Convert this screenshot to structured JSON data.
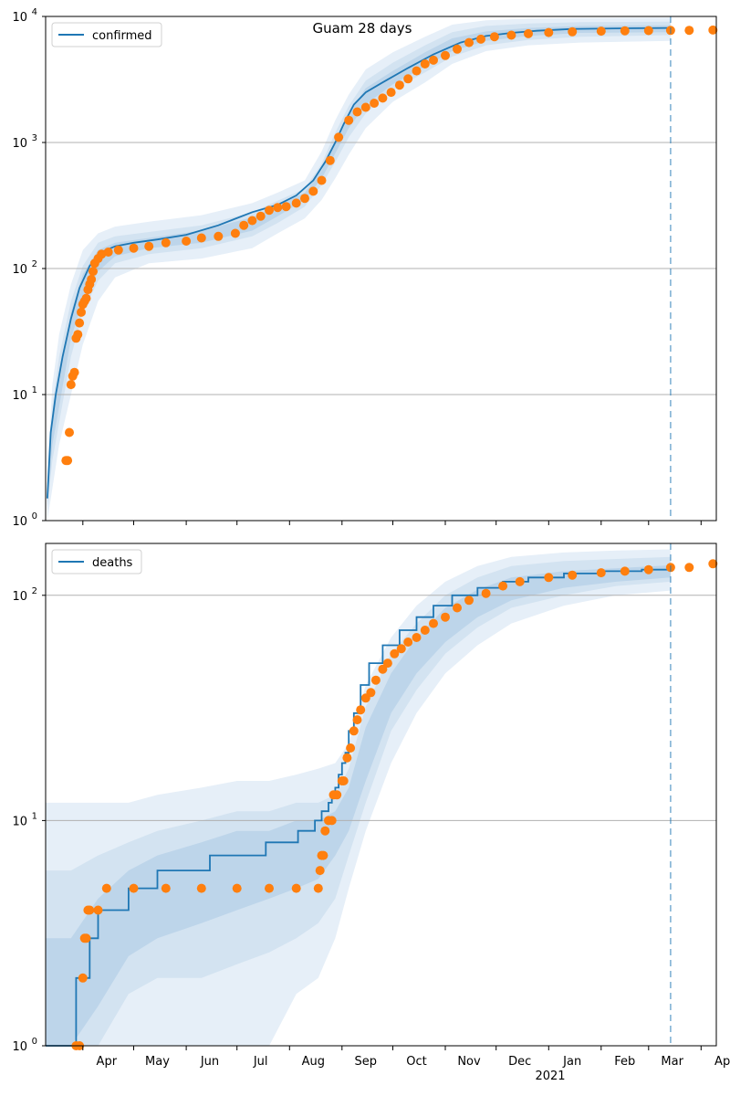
{
  "chart_data": [
    {
      "type": "line",
      "title": "Guam 28 days",
      "scale": "log",
      "ylim": [
        1,
        10000
      ],
      "y_ticks": [
        1,
        10,
        100,
        1000,
        10000
      ],
      "y_tick_labels": [
        "10^0",
        "10^1",
        "10^2",
        "10^3",
        "10^4"
      ],
      "grid": "horizontal",
      "legend": {
        "label": "confirmed",
        "placement": "top-left"
      },
      "xlim": [
        "2020-03-10",
        "2021-04-10"
      ],
      "forecast_start": "2021-03-14",
      "series": [
        {
          "name": "confirmed",
          "style": "line",
          "color": "#1f77b4",
          "x": [
            "2020-03-11",
            "2020-03-13",
            "2020-03-16",
            "2020-03-20",
            "2020-03-25",
            "2020-03-30",
            "2020-04-05",
            "2020-04-12",
            "2020-04-20",
            "2020-05-01",
            "2020-05-15",
            "2020-06-01",
            "2020-06-20",
            "2020-07-10",
            "2020-07-25",
            "2020-08-05",
            "2020-08-15",
            "2020-08-22",
            "2020-08-28",
            "2020-09-02",
            "2020-09-08",
            "2020-09-15",
            "2020-09-25",
            "2020-10-10",
            "2020-10-25",
            "2020-11-10",
            "2020-11-25",
            "2020-12-10",
            "2020-12-25",
            "2021-01-15",
            "2021-02-15",
            "2021-03-14"
          ],
          "y": [
            1.5,
            5,
            10,
            20,
            40,
            70,
            105,
            135,
            150,
            160,
            170,
            185,
            220,
            280,
            320,
            380,
            500,
            700,
            1000,
            1400,
            2000,
            2500,
            3000,
            3900,
            5000,
            6200,
            7000,
            7400,
            7700,
            7950,
            8050,
            8100
          ]
        },
        {
          "name": "",
          "style": "markers",
          "color": "#ff7f0e",
          "x": [
            "2020-03-22",
            "2020-03-23",
            "2020-03-24",
            "2020-03-25",
            "2020-03-26",
            "2020-03-27",
            "2020-03-28",
            "2020-03-29",
            "2020-03-30",
            "2020-03-31",
            "2020-04-01",
            "2020-04-02",
            "2020-04-03",
            "2020-04-04",
            "2020-04-05",
            "2020-04-06",
            "2020-04-07",
            "2020-04-08",
            "2020-04-10",
            "2020-04-12",
            "2020-04-16",
            "2020-04-22",
            "2020-05-01",
            "2020-05-10",
            "2020-05-20",
            "2020-06-01",
            "2020-06-10",
            "2020-06-20",
            "2020-06-30",
            "2020-07-05",
            "2020-07-10",
            "2020-07-15",
            "2020-07-20",
            "2020-07-25",
            "2020-07-30",
            "2020-08-05",
            "2020-08-10",
            "2020-08-15",
            "2020-08-20",
            "2020-08-25",
            "2020-08-30",
            "2020-09-05",
            "2020-09-10",
            "2020-09-15",
            "2020-09-20",
            "2020-09-25",
            "2020-09-30",
            "2020-10-05",
            "2020-10-10",
            "2020-10-15",
            "2020-10-20",
            "2020-10-25",
            "2020-11-01",
            "2020-11-08",
            "2020-11-15",
            "2020-11-22",
            "2020-11-30",
            "2020-12-10",
            "2020-12-20",
            "2021-01-01",
            "2021-01-15",
            "2021-02-01",
            "2021-02-15",
            "2021-03-01",
            "2021-03-14",
            "2021-03-25",
            "2021-04-08"
          ],
          "y": [
            3,
            3,
            5,
            12,
            14,
            15,
            28,
            30,
            37,
            45,
            52,
            55,
            58,
            68,
            75,
            82,
            95,
            110,
            120,
            130,
            135,
            140,
            145,
            150,
            160,
            165,
            175,
            180,
            190,
            220,
            240,
            260,
            290,
            305,
            310,
            330,
            360,
            410,
            500,
            720,
            1100,
            1500,
            1750,
            1900,
            2050,
            2250,
            2500,
            2850,
            3200,
            3700,
            4200,
            4500,
            4900,
            5500,
            6200,
            6600,
            6900,
            7100,
            7300,
            7450,
            7550,
            7650,
            7700,
            7720,
            7750,
            7760,
            7800
          ]
        }
      ],
      "bands": [
        {
          "level": "outer",
          "x": [
            "2020-03-11",
            "2020-03-14",
            "2020-03-18",
            "2020-03-25",
            "2020-04-01",
            "2020-04-10",
            "2020-04-20",
            "2020-05-10",
            "2020-06-10",
            "2020-07-10",
            "2020-07-25",
            "2020-08-10",
            "2020-08-20",
            "2020-08-28",
            "2020-09-05",
            "2020-09-15",
            "2020-10-01",
            "2020-10-20",
            "2020-11-05",
            "2020-11-25",
            "2020-12-20",
            "2021-01-20",
            "2021-03-14"
          ],
          "lower": [
            1,
            1.8,
            4,
            10,
            25,
            55,
            85,
            110,
            120,
            145,
            190,
            250,
            350,
            520,
            800,
            1300,
            2100,
            3000,
            4200,
            5300,
            5900,
            6200,
            6400
          ],
          "upper": [
            2.5,
            12,
            30,
            75,
            140,
            190,
            215,
            235,
            265,
            330,
            400,
            500,
            850,
            1500,
            2400,
            3800,
            5200,
            6900,
            8600,
            9300,
            9600,
            9700,
            9800
          ]
        },
        {
          "level": "mid",
          "x": [
            "2020-03-11",
            "2020-03-14",
            "2020-03-18",
            "2020-03-25",
            "2020-04-01",
            "2020-04-10",
            "2020-04-20",
            "2020-05-10",
            "2020-06-10",
            "2020-07-10",
            "2020-07-25",
            "2020-08-10",
            "2020-08-20",
            "2020-08-28",
            "2020-09-05",
            "2020-09-15",
            "2020-10-01",
            "2020-10-20",
            "2020-11-05",
            "2020-11-25",
            "2020-12-20",
            "2021-01-20",
            "2021-03-14"
          ],
          "lower": [
            1.2,
            3,
            6,
            20,
            45,
            80,
            110,
            130,
            145,
            180,
            230,
            310,
            460,
            700,
            1100,
            1700,
            2600,
            3600,
            4800,
            5900,
            6500,
            6900,
            7100
          ],
          "upper": [
            2,
            8,
            20,
            55,
            105,
            160,
            180,
            195,
            220,
            280,
            345,
            430,
            680,
            1200,
            1950,
            3100,
            4300,
            5900,
            7500,
            8400,
            8800,
            9000,
            9100
          ]
        },
        {
          "level": "inner",
          "x": [
            "2020-03-11",
            "2020-03-14",
            "2020-03-18",
            "2020-03-25",
            "2020-04-01",
            "2020-04-10",
            "2020-04-20",
            "2020-05-10",
            "2020-06-10",
            "2020-07-10",
            "2020-07-25",
            "2020-08-10",
            "2020-08-20",
            "2020-08-28",
            "2020-09-05",
            "2020-09-15",
            "2020-10-01",
            "2020-10-20",
            "2020-11-05",
            "2020-11-25",
            "2020-12-20",
            "2021-01-20",
            "2021-03-14"
          ],
          "lower": [
            1.3,
            4,
            8,
            28,
            55,
            95,
            125,
            145,
            160,
            200,
            260,
            350,
            520,
            820,
            1300,
            2000,
            2900,
            4000,
            5300,
            6400,
            7000,
            7400,
            7500
          ],
          "upper": [
            1.8,
            6,
            14,
            45,
            90,
            140,
            160,
            175,
            200,
            255,
            315,
            400,
            600,
            1050,
            1700,
            2700,
            3700,
            5200,
            6700,
            7600,
            8100,
            8400,
            8500
          ]
        }
      ]
    },
    {
      "type": "line",
      "title": "",
      "scale": "log",
      "ylim": [
        1,
        170
      ],
      "y_ticks": [
        1,
        10,
        100
      ],
      "y_tick_labels": [
        "10^0",
        "10^1",
        "10^2"
      ],
      "grid": "horizontal",
      "legend": {
        "label": "deaths",
        "placement": "top-left"
      },
      "xlim": [
        "2020-03-10",
        "2021-04-10"
      ],
      "x_tick_labels": [
        "Apr",
        "May",
        "Jun",
        "Jul",
        "Aug",
        "Sep",
        "Oct",
        "Nov",
        "Dec",
        "Jan",
        "Feb",
        "Mar",
        "Apr"
      ],
      "x_tick_dates": [
        "2020-04-01",
        "2020-05-01",
        "2020-06-01",
        "2020-07-01",
        "2020-08-01",
        "2020-09-01",
        "2020-10-01",
        "2020-11-01",
        "2020-12-01",
        "2021-01-01",
        "2021-02-01",
        "2021-03-01",
        "2021-04-01"
      ],
      "x_year_label": "2021",
      "forecast_start": "2021-03-14",
      "series": [
        {
          "name": "deaths",
          "style": "step",
          "color": "#1f77b4",
          "x": [
            "2020-03-10",
            "2020-03-28",
            "2020-04-05",
            "2020-04-10",
            "2020-04-28",
            "2020-05-15",
            "2020-06-15",
            "2020-07-18",
            "2020-08-06",
            "2020-08-16",
            "2020-08-20",
            "2020-08-24",
            "2020-08-26",
            "2020-08-28",
            "2020-08-30",
            "2020-09-01",
            "2020-09-03",
            "2020-09-05",
            "2020-09-08",
            "2020-09-12",
            "2020-09-17",
            "2020-09-25",
            "2020-10-05",
            "2020-10-15",
            "2020-10-25",
            "2020-11-05",
            "2020-11-20",
            "2020-12-05",
            "2020-12-20",
            "2021-01-10",
            "2021-02-01",
            "2021-02-25",
            "2021-03-14"
          ],
          "y": [
            1,
            2,
            3,
            4,
            5,
            6,
            7,
            8,
            9,
            10,
            11,
            12,
            13,
            14,
            16,
            18,
            20,
            25,
            30,
            40,
            50,
            60,
            70,
            80,
            90,
            100,
            108,
            115,
            120,
            125,
            128,
            130,
            133
          ]
        },
        {
          "name": "",
          "style": "markers",
          "color": "#ff7f0e",
          "x": [
            "2020-03-28",
            "2020-03-30",
            "2020-04-01",
            "2020-04-02",
            "2020-04-03",
            "2020-04-04",
            "2020-04-05",
            "2020-04-10",
            "2020-04-15",
            "2020-05-01",
            "2020-05-20",
            "2020-06-10",
            "2020-07-01",
            "2020-07-20",
            "2020-08-05",
            "2020-08-18",
            "2020-08-19",
            "2020-08-20",
            "2020-08-21",
            "2020-08-22",
            "2020-08-24",
            "2020-08-26",
            "2020-08-27",
            "2020-08-29",
            "2020-09-01",
            "2020-09-02",
            "2020-09-04",
            "2020-09-06",
            "2020-09-08",
            "2020-09-10",
            "2020-09-12",
            "2020-09-15",
            "2020-09-18",
            "2020-09-21",
            "2020-09-25",
            "2020-09-28",
            "2020-10-02",
            "2020-10-06",
            "2020-10-10",
            "2020-10-15",
            "2020-10-20",
            "2020-10-25",
            "2020-11-01",
            "2020-11-08",
            "2020-11-15",
            "2020-11-25",
            "2020-12-05",
            "2020-12-15",
            "2021-01-01",
            "2021-01-15",
            "2021-02-01",
            "2021-02-15",
            "2021-03-01",
            "2021-03-14",
            "2021-03-25",
            "2021-04-08"
          ],
          "y": [
            1,
            1,
            2,
            3,
            3,
            4,
            4,
            4,
            5,
            5,
            5,
            5,
            5,
            5,
            5,
            5,
            6,
            7,
            7,
            9,
            10,
            10,
            13,
            13,
            15,
            15,
            19,
            21,
            25,
            28,
            31,
            35,
            37,
            42,
            47,
            50,
            55,
            58,
            62,
            65,
            70,
            75,
            80,
            88,
            95,
            102,
            110,
            115,
            120,
            123,
            126,
            128,
            130,
            133,
            133,
            138
          ]
        }
      ],
      "bands": [
        {
          "level": "outer",
          "x": [
            "2020-03-10",
            "2020-03-25",
            "2020-04-10",
            "2020-04-28",
            "2020-05-15",
            "2020-06-10",
            "2020-07-01",
            "2020-07-20",
            "2020-08-05",
            "2020-08-18",
            "2020-08-28",
            "2020-09-05",
            "2020-09-15",
            "2020-09-30",
            "2020-10-15",
            "2020-11-01",
            "2020-11-20",
            "2020-12-10",
            "2021-01-10",
            "2021-02-10",
            "2021-03-14"
          ],
          "lower": [
            1,
            1,
            1,
            1,
            1,
            1,
            1,
            1,
            1.7,
            2,
            3,
            5,
            9,
            18,
            30,
            45,
            60,
            75,
            90,
            100,
            105
          ],
          "upper": [
            12,
            12,
            12,
            12,
            13,
            14,
            15,
            15,
            16,
            17,
            18,
            22,
            40,
            65,
            90,
            115,
            135,
            148,
            155,
            158,
            160
          ]
        },
        {
          "level": "mid",
          "x": [
            "2020-03-10",
            "2020-03-25",
            "2020-04-10",
            "2020-04-28",
            "2020-05-15",
            "2020-06-10",
            "2020-07-01",
            "2020-07-20",
            "2020-08-05",
            "2020-08-18",
            "2020-08-28",
            "2020-09-05",
            "2020-09-15",
            "2020-09-30",
            "2020-10-15",
            "2020-11-01",
            "2020-11-20",
            "2020-12-10",
            "2021-01-10",
            "2021-02-10",
            "2021-03-14"
          ],
          "lower": [
            1,
            1,
            1,
            1.7,
            2,
            2,
            2.3,
            2.6,
            3,
            3.5,
            4.5,
            7,
            12,
            25,
            38,
            55,
            72,
            88,
            100,
            110,
            115
          ],
          "upper": [
            6,
            6,
            7,
            8,
            9,
            10,
            11,
            11,
            12,
            12,
            13,
            17,
            32,
            55,
            75,
            100,
            120,
            135,
            142,
            145,
            148
          ]
        },
        {
          "level": "inner",
          "x": [
            "2020-03-10",
            "2020-03-25",
            "2020-04-10",
            "2020-04-28",
            "2020-05-15",
            "2020-06-10",
            "2020-07-01",
            "2020-07-20",
            "2020-08-05",
            "2020-08-18",
            "2020-08-28",
            "2020-09-05",
            "2020-09-15",
            "2020-09-30",
            "2020-10-15",
            "2020-11-01",
            "2020-11-20",
            "2020-12-10",
            "2021-01-10",
            "2021-02-10",
            "2021-03-14"
          ],
          "lower": [
            1,
            1,
            1.5,
            2.5,
            3,
            3.5,
            4,
            4.5,
            5,
            5.5,
            7,
            9,
            15,
            30,
            45,
            62,
            80,
            95,
            108,
            115,
            120
          ],
          "upper": [
            3,
            3,
            4.5,
            6,
            7,
            8,
            9,
            9,
            10,
            10,
            11,
            14,
            26,
            45,
            65,
            88,
            106,
            120,
            128,
            132,
            136
          ]
        }
      ]
    }
  ]
}
